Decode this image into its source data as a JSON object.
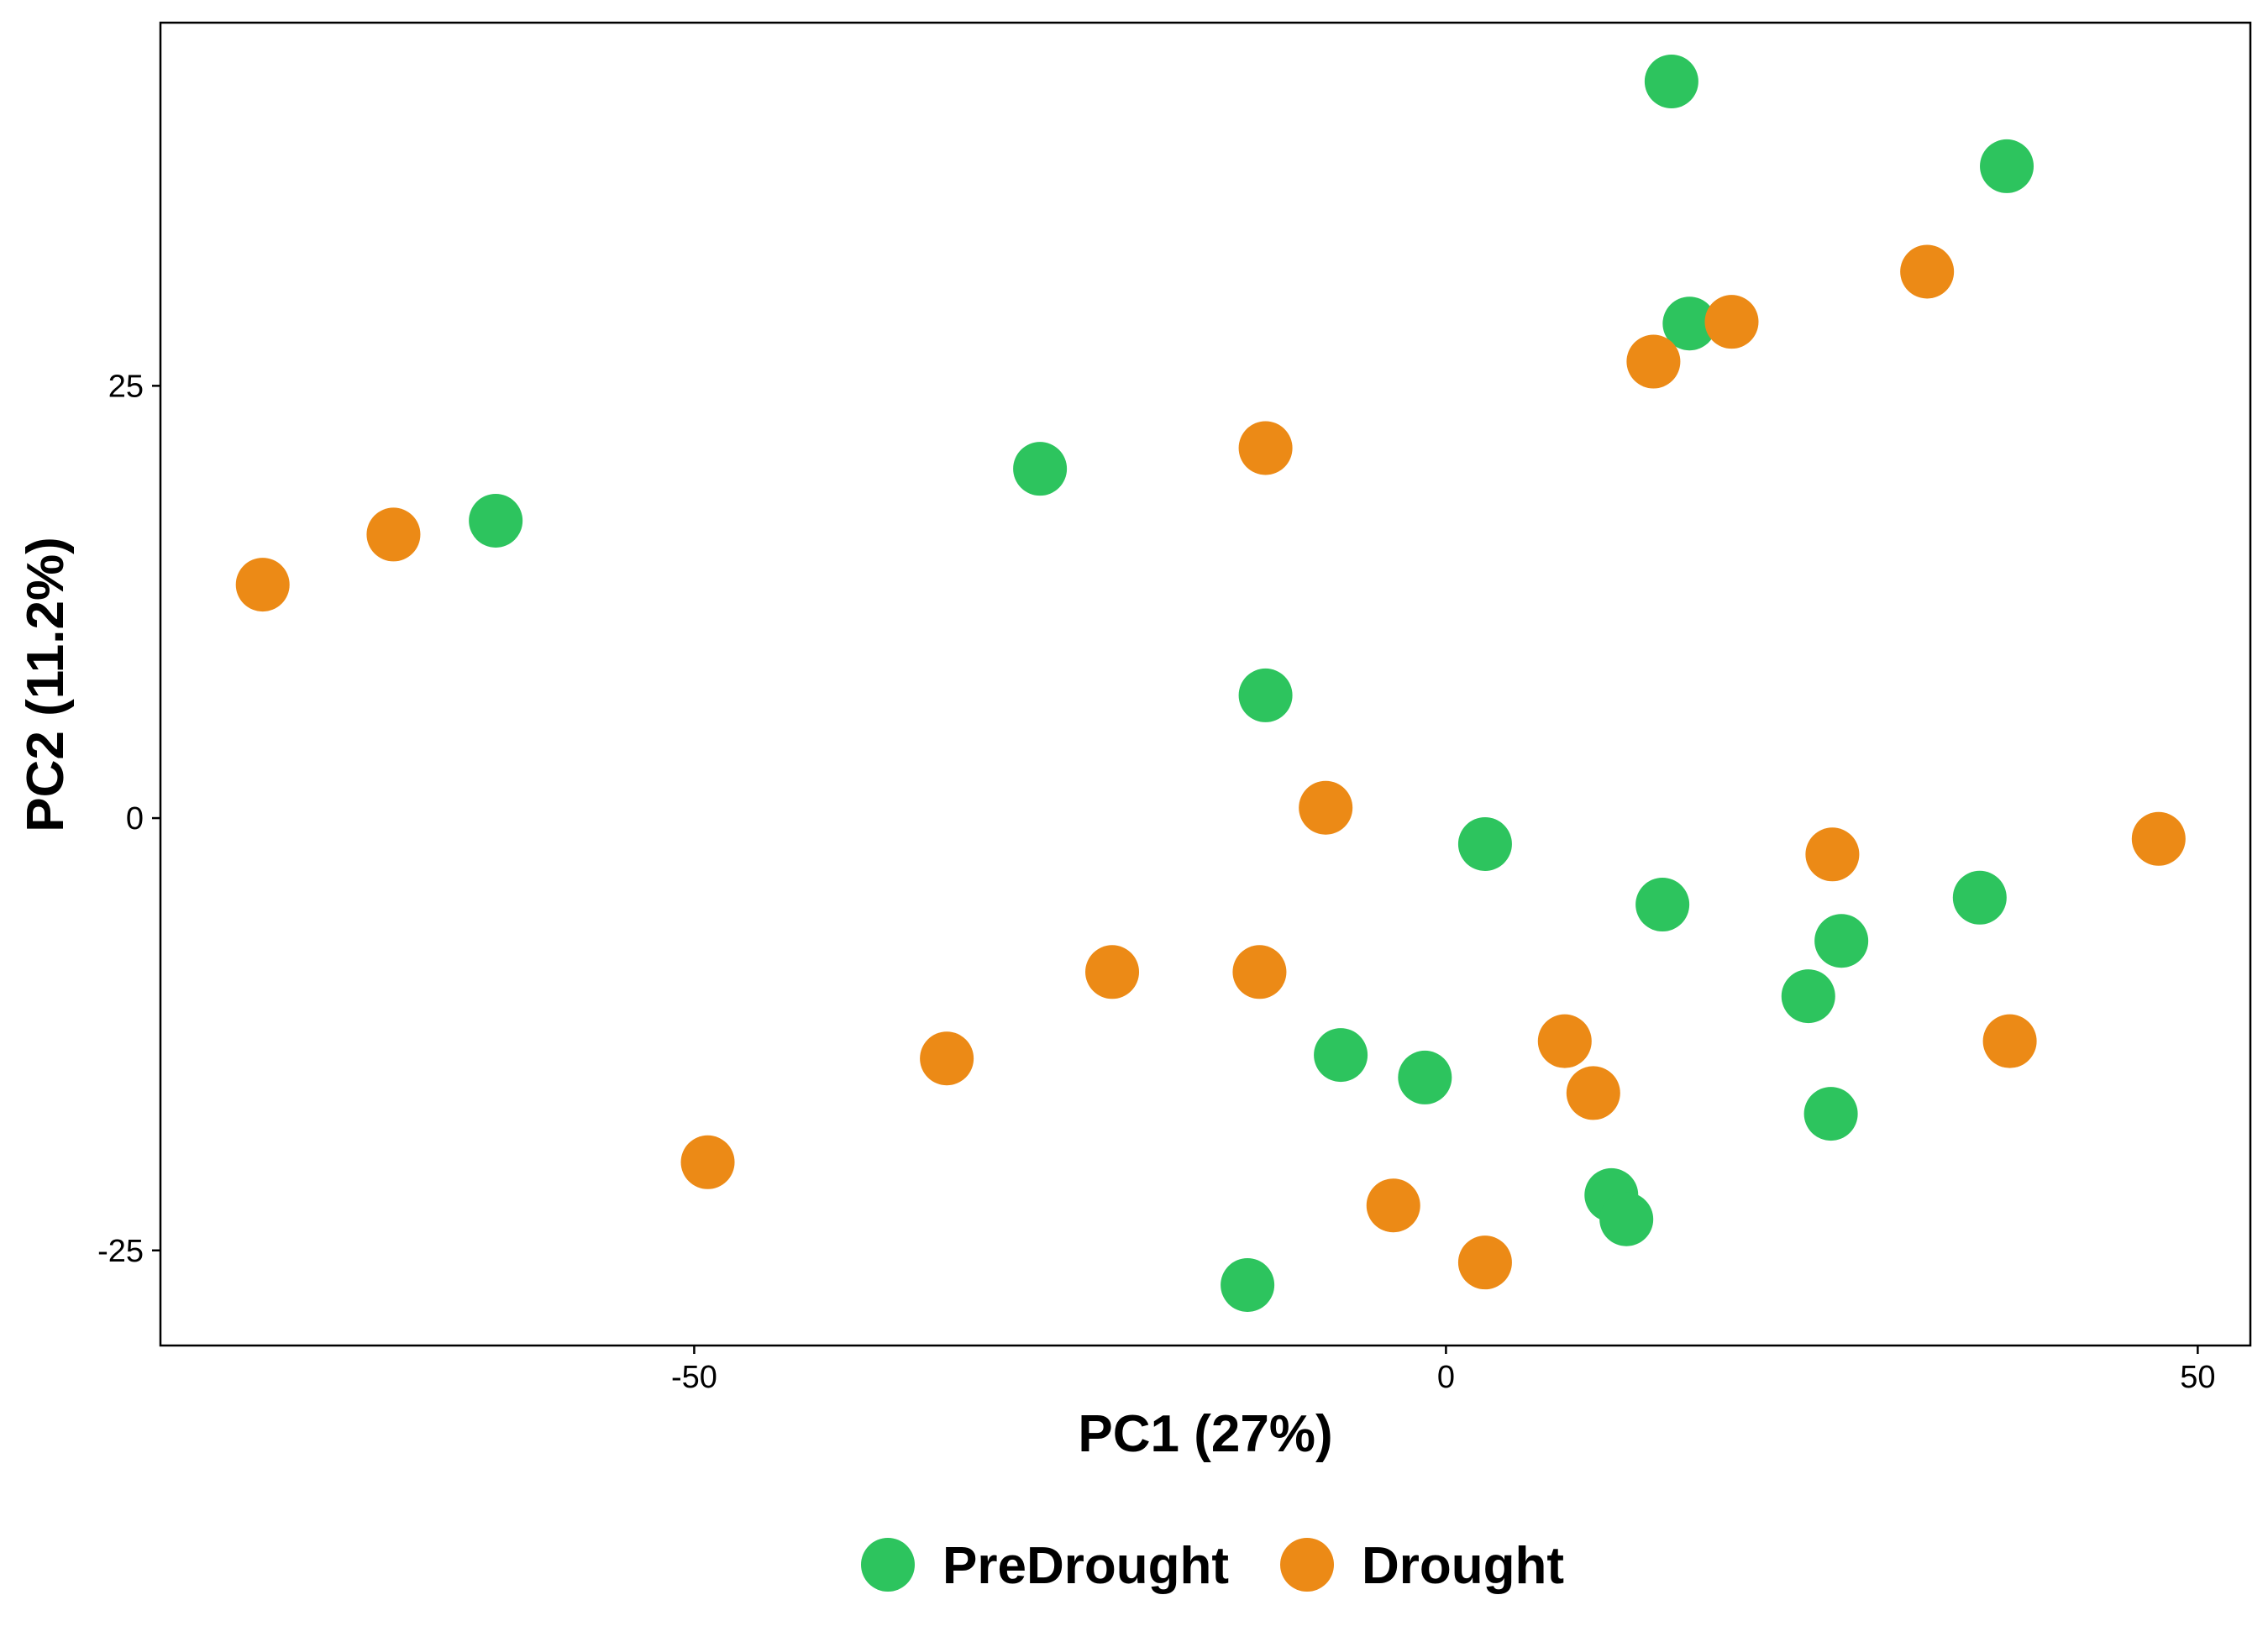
{
  "chart_data": {
    "type": "scatter",
    "title": "",
    "xlabel": "PC1 (27%)",
    "ylabel": "PC2 (11.2%)",
    "xlim": [
      -85.5,
      53.5
    ],
    "ylim": [
      -30.5,
      46
    ],
    "xticks": [
      -50,
      0,
      50
    ],
    "xtick_labels": [
      "-50",
      "0",
      "50"
    ],
    "yticks": [
      -25,
      0,
      25
    ],
    "ytick_labels": [
      "-25",
      "0",
      "25"
    ],
    "grid": false,
    "legend_position": "bottom",
    "series": [
      {
        "name": "PreDrought",
        "color": "#2DC45E",
        "points": [
          {
            "x": 15,
            "y": 42.6
          },
          {
            "x": 37.3,
            "y": 37.7
          },
          {
            "x": 16.2,
            "y": 28.6
          },
          {
            "x": -27,
            "y": 20.2
          },
          {
            "x": -63.2,
            "y": 17.2
          },
          {
            "x": -12,
            "y": 7.1
          },
          {
            "x": 2.6,
            "y": -1.5
          },
          {
            "x": 14.4,
            "y": -5
          },
          {
            "x": 35.5,
            "y": -4.6
          },
          {
            "x": 26.3,
            "y": -7.1
          },
          {
            "x": 24.1,
            "y": -10.3
          },
          {
            "x": -7,
            "y": -13.7
          },
          {
            "x": -1.4,
            "y": -15
          },
          {
            "x": 25.6,
            "y": -17.1
          },
          {
            "x": 11,
            "y": -21.8
          },
          {
            "x": 12,
            "y": -23.2
          },
          {
            "x": -13.2,
            "y": -27
          }
        ]
      },
      {
        "name": "Drought",
        "color": "#EC8A16",
        "points": [
          {
            "x": 32,
            "y": 31.6
          },
          {
            "x": 19,
            "y": 28.7
          },
          {
            "x": 13.8,
            "y": 26.4
          },
          {
            "x": -12,
            "y": 21.4
          },
          {
            "x": -70,
            "y": 16.4
          },
          {
            "x": -78.7,
            "y": 13.5
          },
          {
            "x": -8,
            "y": 0.6
          },
          {
            "x": 25.7,
            "y": -2.1
          },
          {
            "x": 47.4,
            "y": -1.2
          },
          {
            "x": -22.2,
            "y": -8.9
          },
          {
            "x": -12.4,
            "y": -8.9
          },
          {
            "x": -33.2,
            "y": -13.9
          },
          {
            "x": 7.9,
            "y": -12.9
          },
          {
            "x": 9.8,
            "y": -15.9
          },
          {
            "x": 37.5,
            "y": -12.9
          },
          {
            "x": -49.1,
            "y": -19.9
          },
          {
            "x": -3.5,
            "y": -22.4
          },
          {
            "x": 2.6,
            "y": -25.7
          }
        ]
      }
    ]
  }
}
